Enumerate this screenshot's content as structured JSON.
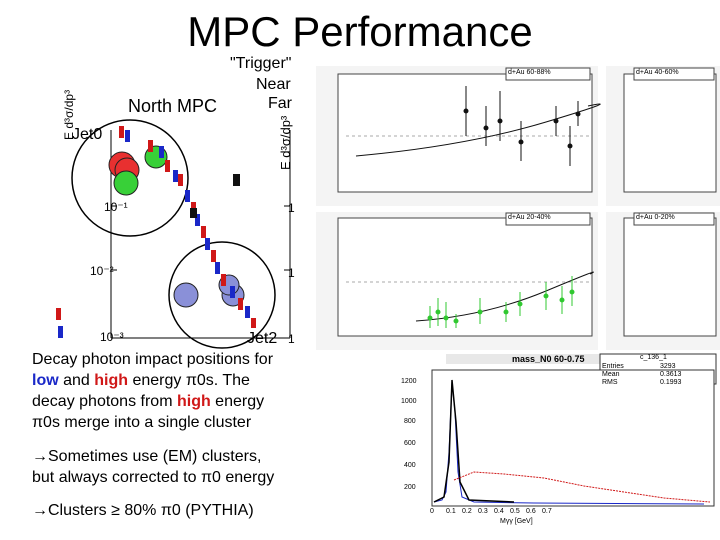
{
  "title": "MPC Performance",
  "labels": {
    "trigger": "\"Trigger\"",
    "near": "Near",
    "far": "Far",
    "north_mpc": "North MPC",
    "jet0": "Jet0",
    "jet2": "Jet2",
    "left_axis": "E d³σ/dp³",
    "right_axis": "E d³σ/dp³",
    "tick_10m1": "10⁻¹",
    "tick_10m2": "10⁻²",
    "tick_10m3": "10⁻³",
    "tick_1a": "1",
    "tick_1b": "1",
    "tick_1c": "1"
  },
  "text": {
    "line1": "Decay photon impact positions for",
    "low": "low",
    "and": " and ",
    "high1": "high",
    "line2_rest": " energy π0s. The",
    "line3_pre": "decay photons from ",
    "high2": "high",
    "line3_post": " energy",
    "line4": "π0s merge into a single cluster",
    "bullet1_a": "→Sometimes use (EM) clusters,",
    "bullet1_b": "but always corrected to π0 energy",
    "bullet2": "→Clusters ≥ 80% π0 (PYTHIA)"
  },
  "panels": {
    "p1": "d+Au 60-88%",
    "p2": "d+Au 40-60%",
    "p3": "d+Au 20-40%",
    "p4": "d+Au 0-20%"
  },
  "hist": {
    "title": "mass_N0 60-0.75",
    "stats_name": "c_136_1",
    "entries_label": "Entries",
    "entries": "3293",
    "mean_label": "Mean",
    "mean": "0.3613",
    "rms_label": "RMS",
    "rms": "0.1993",
    "xlabel": "Mγγ [GeV]",
    "yticks": [
      "1200",
      "1000",
      "800",
      "600",
      "400",
      "200"
    ],
    "xticks": [
      "0",
      "0.1",
      "0.2",
      "0.3",
      "0.4",
      "0.5",
      "0.6",
      "0.7"
    ]
  },
  "colors": {
    "low": "#1a28c8",
    "high": "#d01818",
    "green": "#30c830"
  }
}
